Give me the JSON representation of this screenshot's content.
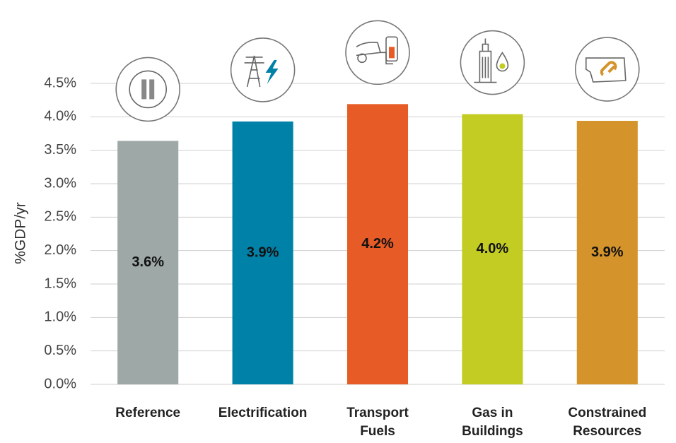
{
  "chart_data": {
    "type": "bar",
    "y_label": "%GDP/yr",
    "categories": [
      "Reference",
      "Electrification",
      "Transport Fuels",
      "Gas in Buildings",
      "Constrained Resources"
    ],
    "values": [
      3.64,
      3.93,
      4.19,
      4.04,
      3.94
    ],
    "value_labels": [
      "3.6%",
      "3.9%",
      "4.2%",
      "4.0%",
      "3.9%"
    ],
    "colors": [
      "#9ea8a7",
      "#0081a8",
      "#e75c26",
      "#c3cc22",
      "#d5932b"
    ],
    "ylim": [
      0,
      4.5
    ],
    "yticks": [
      {
        "value": 0,
        "label": "0.0%"
      },
      {
        "value": 0.5,
        "label": "0.5%"
      },
      {
        "value": 1,
        "label": "1.0%"
      },
      {
        "value": 1.5,
        "label": "1.5%"
      },
      {
        "value": 2,
        "label": "2.0%"
      },
      {
        "value": 2.5,
        "label": "2.5%"
      },
      {
        "value": 3,
        "label": "3.0%"
      },
      {
        "value": 3.5,
        "label": "3.5%"
      },
      {
        "value": 4,
        "label": "4.0%"
      },
      {
        "value": 4.5,
        "label": "4.5%"
      }
    ],
    "grid": true
  }
}
